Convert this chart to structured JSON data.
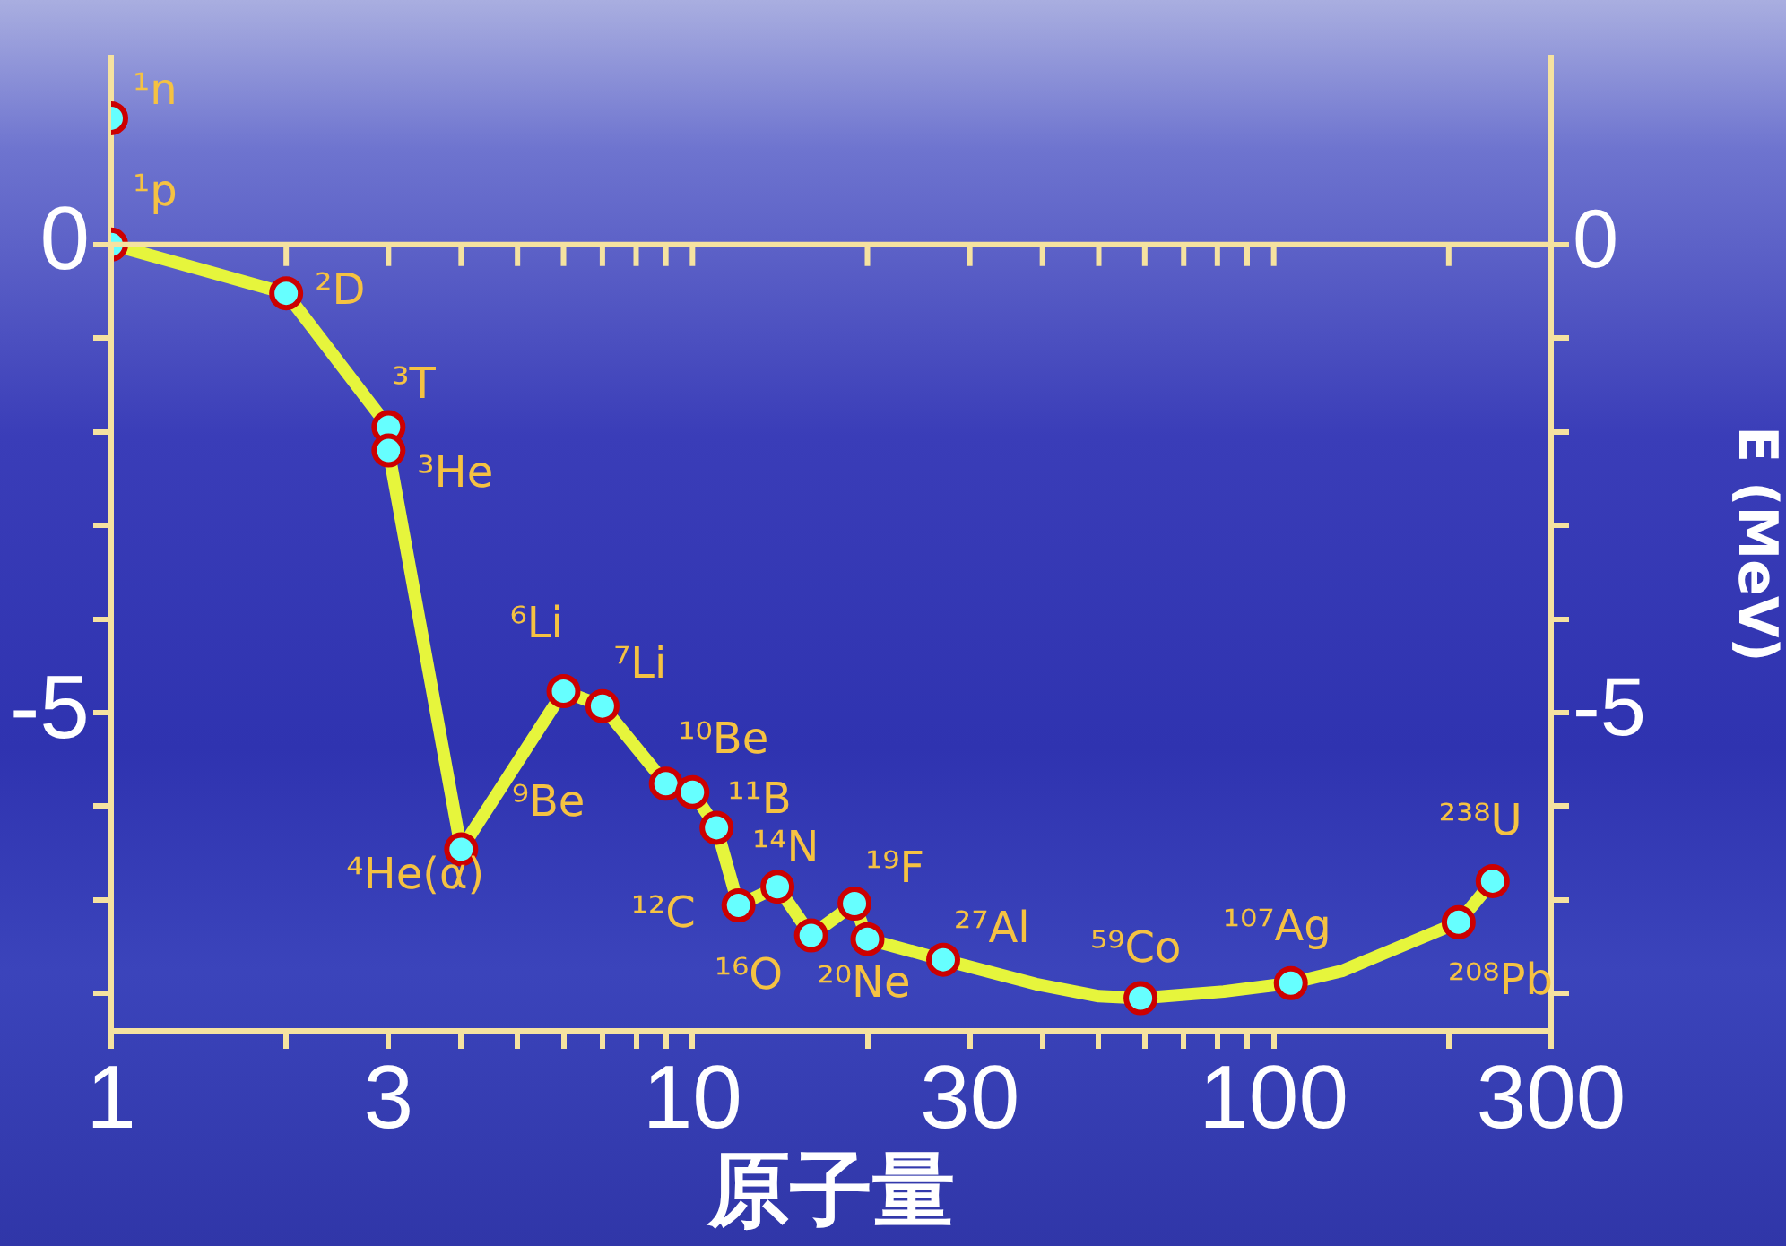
{
  "chart_data": {
    "type": "scatter",
    "xlabel": "原子量",
    "y2label": "E (MeV)",
    "log": "x",
    "xlim": [
      1,
      300
    ],
    "xticks": [
      1,
      {
        "value": 2,
        "label": null
      },
      3,
      {
        "value": 4,
        "label": null
      },
      {
        "value": 5,
        "label": null
      },
      {
        "value": 6,
        "label": null
      },
      {
        "value": 7,
        "label": null
      },
      {
        "value": 8,
        "label": null
      },
      {
        "value": 9,
        "label": null
      },
      10,
      {
        "value": 20,
        "label": null
      },
      30,
      {
        "value": 40,
        "label": null
      },
      {
        "value": 50,
        "label": null
      },
      {
        "value": 60,
        "label": null
      },
      {
        "value": 70,
        "label": null
      },
      {
        "value": 80,
        "label": null
      },
      {
        "value": 90,
        "label": null
      },
      100,
      {
        "value": 200,
        "label": null
      },
      300
    ],
    "ylim": [
      -8.4,
      2
    ],
    "yticks": [
      0,
      {
        "value": -1,
        "label": null
      },
      {
        "value": -2,
        "label": null
      },
      {
        "value": -3,
        "label": null
      },
      {
        "value": -4,
        "label": null
      },
      -5,
      {
        "value": -6,
        "label": null
      },
      {
        "value": -7,
        "label": null
      },
      {
        "value": -8,
        "label": null
      }
    ],
    "y2lim": [
      -8.4,
      2
    ],
    "y2ticks": [
      0,
      {
        "value": -1,
        "label": null
      },
      {
        "value": -2,
        "label": null
      },
      {
        "value": -3,
        "label": null
      },
      {
        "value": -4,
        "label": null
      },
      -5,
      {
        "value": -6,
        "label": null
      },
      {
        "value": -7,
        "label": null
      },
      {
        "value": -8,
        "label": null
      }
    ],
    "grid": false,
    "legend": false,
    "ref_lines": [
      {
        "axis": "y",
        "value": 0,
        "color": "#f5e2a0"
      }
    ],
    "series": [
      {
        "type": "line",
        "color": "#e6f53c",
        "marker": "none",
        "line_style": "solid",
        "x": [
          1,
          2,
          3,
          3,
          4,
          6,
          7,
          9,
          10,
          11,
          12,
          14,
          16,
          19,
          20,
          27,
          39,
          50,
          59,
          82,
          107,
          131,
          208,
          238
        ],
        "values": [
          0,
          -0.52,
          -1.95,
          -2.2,
          -6.46,
          -4.77,
          -4.93,
          -5.76,
          -5.85,
          -6.23,
          -7.06,
          -6.86,
          -7.38,
          -7.04,
          -7.42,
          -7.64,
          -7.9,
          -8.03,
          -8.05,
          -7.98,
          -7.89,
          -7.76,
          -7.24,
          -6.8
        ]
      },
      {
        "color": "#66ffff",
        "marker": "circle",
        "x": [
          1,
          1,
          2,
          3,
          3,
          4,
          6,
          7,
          9,
          10,
          11,
          12,
          14,
          16,
          19,
          20,
          27,
          59,
          107,
          208,
          238
        ],
        "values": [
          1.35,
          0,
          -0.52,
          -1.95,
          -2.2,
          -6.46,
          -4.77,
          -4.93,
          -5.76,
          -5.85,
          -6.23,
          -7.06,
          -6.86,
          -7.38,
          -7.04,
          -7.42,
          -7.64,
          -8.05,
          -7.89,
          -7.24,
          -6.8
        ]
      }
    ],
    "annotations": [
      {
        "text": "¹n",
        "x": 1,
        "y": 1.35
      },
      {
        "text": "¹p",
        "x": 1,
        "y": 0
      },
      {
        "text": "²D",
        "x": 2,
        "y": -0.52
      },
      {
        "text": "³T",
        "x": 3,
        "y": -1.95
      },
      {
        "text": "³He",
        "x": 3,
        "y": -2.2
      },
      {
        "text": "⁴He(α)",
        "x": 4,
        "y": -6.46
      },
      {
        "text": "⁶Li",
        "x": 6,
        "y": -4.77
      },
      {
        "text": "⁷Li",
        "x": 7,
        "y": -4.93
      },
      {
        "text": "⁹Be",
        "x": 9,
        "y": -5.76
      },
      {
        "text": "¹⁰Be",
        "x": 10,
        "y": -5.85
      },
      {
        "text": "¹¹B",
        "x": 11,
        "y": -6.23
      },
      {
        "text": "¹²C",
        "x": 12,
        "y": -7.06
      },
      {
        "text": "¹⁴N",
        "x": 14,
        "y": -6.86
      },
      {
        "text": "¹⁶O",
        "x": 16,
        "y": -7.38
      },
      {
        "text": "¹⁹F",
        "x": 19,
        "y": -7.04
      },
      {
        "text": "²⁰Ne",
        "x": 20,
        "y": -7.42
      },
      {
        "text": "²⁷Al",
        "x": 27,
        "y": -7.64
      },
      {
        "text": "⁵⁹Co",
        "x": 59,
        "y": -8.05
      },
      {
        "text": "¹⁰⁷Ag",
        "x": 107,
        "y": -7.89
      },
      {
        "text": "²⁰⁸Pb",
        "x": 208,
        "y": -7.24
      },
      {
        "text": "²³⁸U",
        "x": 238,
        "y": -6.8
      }
    ]
  }
}
